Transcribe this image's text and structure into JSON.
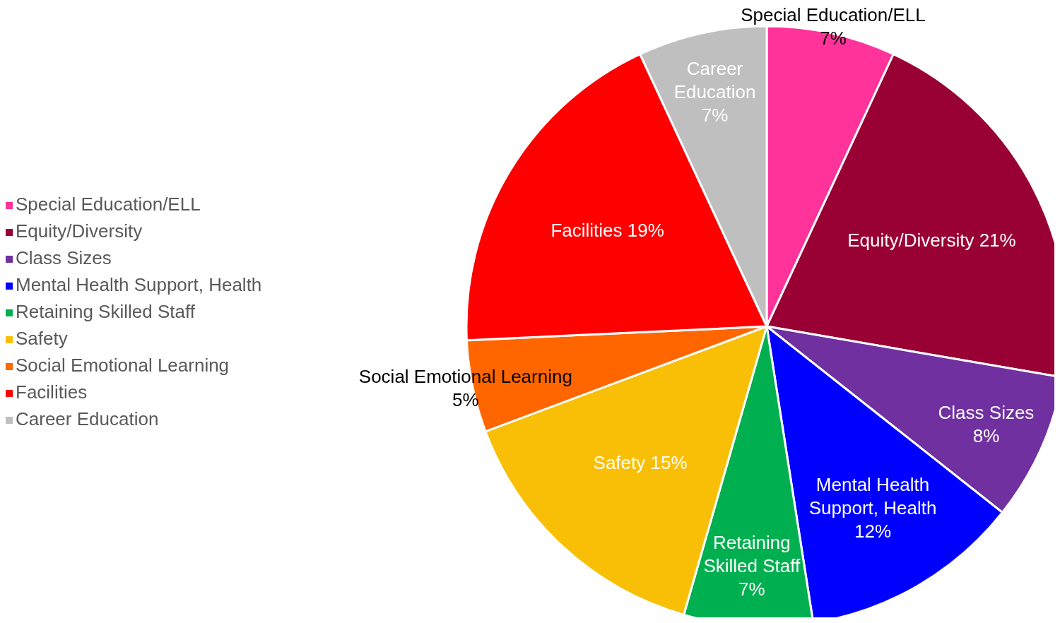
{
  "chart_data": {
    "type": "pie",
    "categories": [
      "Special Education/ELL",
      "Equity/Diversity",
      "Class Sizes",
      "Mental Health Support, Health",
      "Retaining Skilled Staff",
      "Safety",
      "Social Emotional Learning",
      "Facilities",
      "Career Education"
    ],
    "values": [
      7,
      21,
      8,
      12,
      7,
      15,
      5,
      19,
      7
    ],
    "value_labels": [
      "7%",
      "21%",
      "8%",
      "12%",
      "7%",
      "15%",
      "5%",
      "19%",
      "7%"
    ],
    "colors": [
      "#ff3399",
      "#990033",
      "#7030a0",
      "#0000ff",
      "#00b050",
      "#f9bf06",
      "#ff6600",
      "#ff0000",
      "#bfbfbf"
    ],
    "legend": "left"
  }
}
